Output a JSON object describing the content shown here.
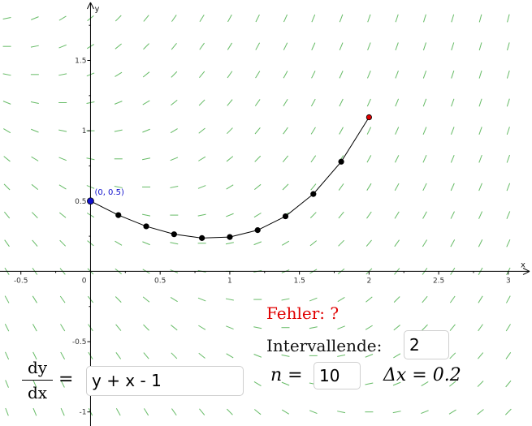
{
  "axes": {
    "x_label": "x",
    "y_label": "y",
    "x_ticks": [
      "-0.5",
      "0.5",
      "1",
      "1.5",
      "2",
      "2.5",
      "3"
    ],
    "x_tick_values": [
      -0.5,
      0.5,
      1,
      1.5,
      2,
      2.5,
      3
    ],
    "y_ticks": [
      "1.5",
      "1",
      "0.5",
      "-0.5",
      "-1"
    ],
    "y_tick_values": [
      1.5,
      1,
      0.5,
      -0.5,
      -1
    ],
    "origin_label": "0",
    "x_range": [
      -0.65,
      3.17
    ],
    "y_range": [
      -1.1,
      1.93
    ]
  },
  "slope_field": {
    "color": "#66bb66",
    "equation": "y + x - 1"
  },
  "euler": {
    "points": [
      [
        0,
        0.5
      ],
      [
        0.2,
        0.4
      ],
      [
        0.4,
        0.32
      ],
      [
        0.6,
        0.264
      ],
      [
        0.8,
        0.2368
      ],
      [
        1.0,
        0.2442
      ],
      [
        1.2,
        0.293
      ],
      [
        1.4,
        0.3916
      ],
      [
        1.6,
        0.5499
      ],
      [
        1.8,
        0.7799
      ],
      [
        2.0,
        1.0959
      ]
    ],
    "start_label": "(0, 0.5)",
    "start_color": "#1010cc",
    "end_color": "#dd0000",
    "point_color": "#000000"
  },
  "panel": {
    "fehler": "Fehler: ?",
    "intervallende_label": "Intervallende:",
    "intervallende_value": "2",
    "n_label": "n =",
    "n_value": "10",
    "dx_label": "Δx = 0.2",
    "dy": "dy",
    "dx": "dx",
    "equals": "=",
    "equation_value": "y + x - 1"
  }
}
